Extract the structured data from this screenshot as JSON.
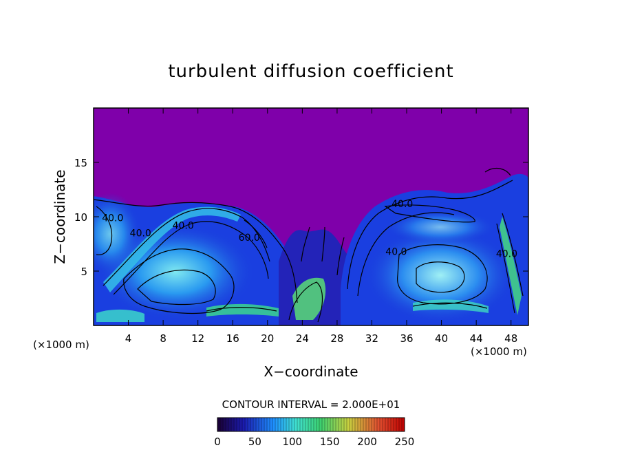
{
  "chart_data": {
    "type": "heatmap",
    "title": "turbulent diffusion coefficient",
    "xlabel": "X−coordinate",
    "ylabel": "Z−coordinate",
    "x_unit_left": "(×1000 m)",
    "x_unit_right": "(×1000 m)",
    "xlim": [
      0,
      50
    ],
    "ylim": [
      0,
      20
    ],
    "xticks": [
      4,
      8,
      12,
      16,
      20,
      24,
      28,
      32,
      36,
      40,
      44,
      48
    ],
    "xtick_labels": [
      "4",
      "8",
      "12",
      "16",
      "20",
      "24",
      "28",
      "32",
      "36",
      "40",
      "44",
      "48"
    ],
    "yticks": [
      5,
      10,
      15
    ],
    "ytick_labels": [
      "5",
      "10",
      "15"
    ],
    "contour_interval_text": "CONTOUR INTERVAL = 2.000E+01",
    "colorbar": {
      "range": [
        0,
        250
      ],
      "tick_values": [
        0,
        50,
        100,
        150,
        200,
        250
      ],
      "tick_labels": [
        "0",
        "50",
        "100",
        "150",
        "200",
        "250"
      ],
      "colors": [
        "#1a0033",
        "#1b1bb0",
        "#1e90ff",
        "#40e0d0",
        "#3cd070",
        "#c8d040",
        "#e05030",
        "#c00000"
      ]
    },
    "contour_labels": [
      {
        "text": "40.0",
        "x": 2.2,
        "y": 9.6
      },
      {
        "text": "40.0",
        "x": 5.4,
        "y": 8.2
      },
      {
        "text": "40.0",
        "x": 10.3,
        "y": 8.9
      },
      {
        "text": "60.0",
        "x": 17.9,
        "y": 7.8
      },
      {
        "text": "40.0",
        "x": 35.5,
        "y": 10.9
      },
      {
        "text": "40.0",
        "x": 34.8,
        "y": 6.5
      },
      {
        "text": "40.0",
        "x": 47.5,
        "y": 6.3
      }
    ],
    "background_color": "#7f00aa"
  }
}
